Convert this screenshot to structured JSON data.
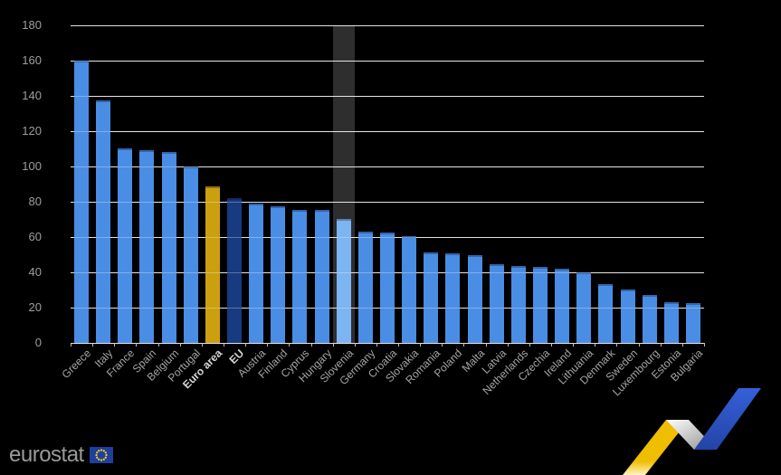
{
  "chart_data": {
    "type": "bar",
    "categories": [
      "Greece",
      "Italy",
      "France",
      "Spain",
      "Belgium",
      "Portugal",
      "Euro area",
      "EU",
      "Austria",
      "Finland",
      "Cyprus",
      "Hungary",
      "Slovenia",
      "Germany",
      "Croatia",
      "Slovakia",
      "Romania",
      "Poland",
      "Malta",
      "Latvia",
      "Netherlands",
      "Czechia",
      "Ireland",
      "Lithuania",
      "Denmark",
      "Sweden",
      "Luxembourg",
      "Estonia",
      "Bulgaria"
    ],
    "values": [
      160,
      137.5,
      110.5,
      109,
      108,
      100,
      88.5,
      82,
      79,
      77.5,
      75.5,
      75.5,
      70.5,
      63,
      62.5,
      60.5,
      51.5,
      51,
      50,
      44.5,
      43.5,
      43,
      42,
      40,
      33.5,
      30.5,
      27,
      23,
      22.5
    ],
    "ylim": [
      0,
      180
    ],
    "yticks": [
      0,
      20,
      40,
      60,
      80,
      100,
      120,
      140,
      160,
      180
    ],
    "grid": true,
    "legend_position": "none",
    "emphasized_categories": [
      "Euro area",
      "EU"
    ],
    "highlighted_category": "Slovenia",
    "colors": {
      "background": "#000000",
      "bar_default": "#4a8de4",
      "bar_euro_area": "#cc9f10",
      "bar_eu": "#173a80",
      "bar_highlighted": "#7db4f2",
      "highlight_band": "#2e2e2e",
      "gridline": "#d9d9d9",
      "axis_tick": "#bdbdbd",
      "y_label": "#9e9e9e",
      "x_label": "#a6a6a6",
      "x_label_emphasized": "#d6d6d6"
    }
  },
  "branding": {
    "logo_text": "eurostat",
    "logo_color": "#9a9a9a",
    "flag_icon": "eu-flag-icon",
    "flag_blue": "#1e3f9e",
    "flag_star_yellow": "#ffd617",
    "ribbon_icon": "eurostat-ribbon-logo",
    "ribbon_yellow_top": "#efbe00",
    "ribbon_yellow_bottom": "#fff3c2",
    "ribbon_silver_light": "#ffffff",
    "ribbon_silver_dark": "#8e8e8e",
    "ribbon_blue_top": "#3560d8",
    "ribbon_blue_bottom": "#2344a6"
  }
}
